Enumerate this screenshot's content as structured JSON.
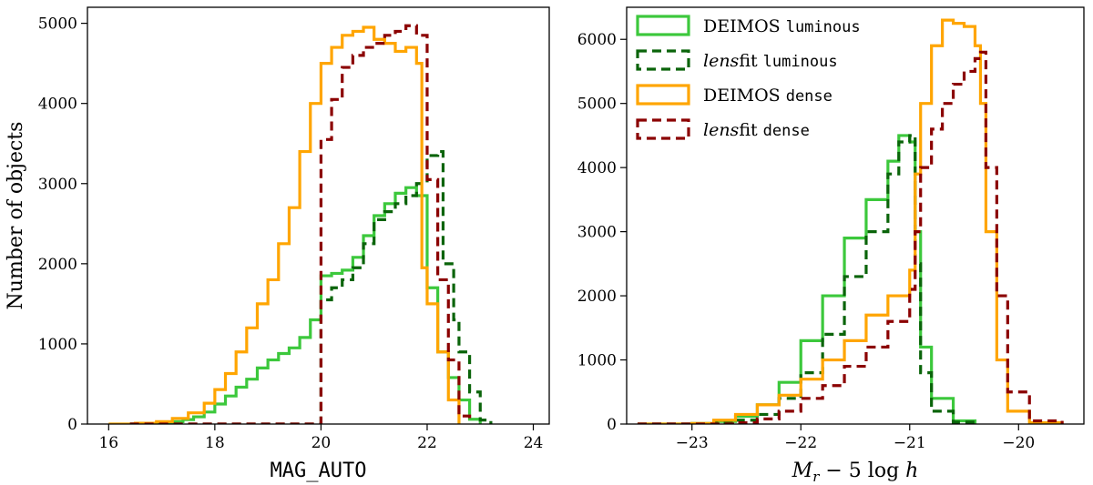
{
  "chart_data": [
    {
      "type": "histogram-step",
      "title": "",
      "xlabel": "MAG_AUTO",
      "xlabel_style": "monospace",
      "ylabel": "Number of objects",
      "xlim": [
        15.6,
        24.3
      ],
      "ylim": [
        0,
        5200
      ],
      "xticks": [
        16,
        18,
        20,
        22,
        24
      ],
      "yticks": [
        0,
        1000,
        2000,
        3000,
        4000,
        5000
      ],
      "grid": false,
      "legend": null,
      "series": [
        {
          "key": "deimos_luminous",
          "color": "#3cc83c",
          "dash": "solid",
          "points": [
            [
              16.4,
              0
            ],
            [
              16.8,
              5
            ],
            [
              17.0,
              15
            ],
            [
              17.2,
              30
            ],
            [
              17.4,
              55
            ],
            [
              17.6,
              90
            ],
            [
              17.8,
              150
            ],
            [
              18.0,
              250
            ],
            [
              18.2,
              350
            ],
            [
              18.4,
              460
            ],
            [
              18.6,
              560
            ],
            [
              18.8,
              700
            ],
            [
              19.0,
              800
            ],
            [
              19.2,
              880
            ],
            [
              19.4,
              950
            ],
            [
              19.6,
              1080
            ],
            [
              19.8,
              1300
            ],
            [
              20.0,
              1850
            ],
            [
              20.2,
              1880
            ],
            [
              20.4,
              1920
            ],
            [
              20.6,
              2080
            ],
            [
              20.8,
              2350
            ],
            [
              21.0,
              2600
            ],
            [
              21.2,
              2750
            ],
            [
              21.4,
              2880
            ],
            [
              21.6,
              2950
            ],
            [
              21.8,
              2850
            ],
            [
              22.0,
              1700
            ],
            [
              22.2,
              900
            ],
            [
              22.4,
              580
            ],
            [
              22.6,
              300
            ],
            [
              22.8,
              60
            ],
            [
              23.0,
              0
            ]
          ]
        },
        {
          "key": "lensfit_luminous",
          "color": "#0a640a",
          "dash": "dashed",
          "points": [
            [
              16.4,
              0
            ],
            [
              19.95,
              0
            ],
            [
              20.0,
              1550
            ],
            [
              20.2,
              1700
            ],
            [
              20.4,
              1800
            ],
            [
              20.6,
              1950
            ],
            [
              20.8,
              2250
            ],
            [
              21.0,
              2550
            ],
            [
              21.2,
              2650
            ],
            [
              21.4,
              2750
            ],
            [
              21.6,
              2850
            ],
            [
              21.8,
              3000
            ],
            [
              22.0,
              3350
            ],
            [
              22.2,
              3400
            ],
            [
              22.3,
              2000
            ],
            [
              22.5,
              1300
            ],
            [
              22.6,
              900
            ],
            [
              22.8,
              400
            ],
            [
              23.0,
              50
            ],
            [
              23.2,
              0
            ]
          ]
        },
        {
          "key": "deimos_dense",
          "color": "#ffa500",
          "dash": "solid",
          "points": [
            [
              16.0,
              0
            ],
            [
              16.5,
              10
            ],
            [
              16.9,
              30
            ],
            [
              17.2,
              70
            ],
            [
              17.5,
              140
            ],
            [
              17.8,
              260
            ],
            [
              18.0,
              430
            ],
            [
              18.2,
              630
            ],
            [
              18.4,
              900
            ],
            [
              18.6,
              1200
            ],
            [
              18.8,
              1500
            ],
            [
              19.0,
              1800
            ],
            [
              19.2,
              2250
            ],
            [
              19.4,
              2700
            ],
            [
              19.6,
              3400
            ],
            [
              19.8,
              4000
            ],
            [
              20.0,
              4500
            ],
            [
              20.2,
              4700
            ],
            [
              20.4,
              4850
            ],
            [
              20.6,
              4900
            ],
            [
              20.8,
              4950
            ],
            [
              21.0,
              4800
            ],
            [
              21.2,
              4750
            ],
            [
              21.4,
              4650
            ],
            [
              21.6,
              4700
            ],
            [
              21.8,
              4500
            ],
            [
              21.9,
              1950
            ],
            [
              22.0,
              1500
            ],
            [
              22.2,
              900
            ],
            [
              22.4,
              300
            ],
            [
              22.6,
              0
            ]
          ]
        },
        {
          "key": "lensfit_dense",
          "color": "#8b0000",
          "dash": "dashed",
          "points": [
            [
              16.4,
              0
            ],
            [
              19.95,
              0
            ],
            [
              20.0,
              3550
            ],
            [
              20.2,
              4050
            ],
            [
              20.4,
              4450
            ],
            [
              20.6,
              4600
            ],
            [
              20.8,
              4700
            ],
            [
              21.0,
              4750
            ],
            [
              21.2,
              4850
            ],
            [
              21.4,
              4900
            ],
            [
              21.6,
              4970
            ],
            [
              21.8,
              4850
            ],
            [
              22.0,
              3050
            ],
            [
              22.2,
              1800
            ],
            [
              22.4,
              800
            ],
            [
              22.6,
              100
            ],
            [
              22.8,
              0
            ]
          ]
        }
      ]
    },
    {
      "type": "histogram-step",
      "title": "",
      "xlabel": "M_r − 5 log h",
      "ylabel": "",
      "xlim": [
        -23.6,
        -19.4
      ],
      "ylim": [
        0,
        6500
      ],
      "xticks": [
        -23,
        -22,
        -21,
        -20
      ],
      "xtick_labels": [
        "−23",
        "−22",
        "−21",
        "−20"
      ],
      "yticks": [
        0,
        1000,
        2000,
        3000,
        4000,
        5000,
        6000
      ],
      "grid": false,
      "legend": "top-left",
      "series": [
        {
          "key": "deimos_luminous",
          "color": "#3cc83c",
          "dash": "solid",
          "legend_main": "DEIMOS ",
          "legend_mono": "luminous",
          "legend_main_italic": false,
          "points": [
            [
              -23.5,
              0
            ],
            [
              -23.0,
              10
            ],
            [
              -22.8,
              40
            ],
            [
              -22.6,
              120
            ],
            [
              -22.4,
              300
            ],
            [
              -22.2,
              650
            ],
            [
              -22.0,
              1300
            ],
            [
              -21.8,
              2000
            ],
            [
              -21.6,
              2900
            ],
            [
              -21.4,
              3500
            ],
            [
              -21.2,
              4100
            ],
            [
              -21.1,
              4500
            ],
            [
              -21.0,
              4400
            ],
            [
              -20.95,
              3000
            ],
            [
              -20.9,
              1200
            ],
            [
              -20.8,
              400
            ],
            [
              -20.6,
              50
            ],
            [
              -20.4,
              0
            ]
          ]
        },
        {
          "key": "lensfit_luminous",
          "color": "#0a640a",
          "dash": "dashed",
          "legend_main": "lens",
          "legend_suffix": "fit ",
          "legend_mono": "luminous",
          "legend_main_italic": true,
          "points": [
            [
              -23.5,
              0
            ],
            [
              -23.0,
              5
            ],
            [
              -22.8,
              20
            ],
            [
              -22.6,
              60
            ],
            [
              -22.4,
              150
            ],
            [
              -22.2,
              400
            ],
            [
              -22.0,
              800
            ],
            [
              -21.8,
              1400
            ],
            [
              -21.6,
              2300
            ],
            [
              -21.4,
              3000
            ],
            [
              -21.2,
              3900
            ],
            [
              -21.1,
              4400
            ],
            [
              -21.0,
              4500
            ],
            [
              -20.95,
              2500
            ],
            [
              -20.9,
              800
            ],
            [
              -20.8,
              200
            ],
            [
              -20.6,
              30
            ],
            [
              -20.4,
              0
            ]
          ]
        },
        {
          "key": "deimos_dense",
          "color": "#ffa500",
          "dash": "solid",
          "legend_main": "DEIMOS ",
          "legend_mono": "dense",
          "legend_main_italic": false,
          "points": [
            [
              -23.5,
              0
            ],
            [
              -23.0,
              10
            ],
            [
              -22.8,
              60
            ],
            [
              -22.6,
              150
            ],
            [
              -22.4,
              300
            ],
            [
              -22.2,
              450
            ],
            [
              -22.0,
              700
            ],
            [
              -21.8,
              1000
            ],
            [
              -21.6,
              1300
            ],
            [
              -21.4,
              1700
            ],
            [
              -21.2,
              2000
            ],
            [
              -21.0,
              2400
            ],
            [
              -20.95,
              3900
            ],
            [
              -20.9,
              5000
            ],
            [
              -20.8,
              5900
            ],
            [
              -20.7,
              6300
            ],
            [
              -20.6,
              6250
            ],
            [
              -20.5,
              6200
            ],
            [
              -20.4,
              5900
            ],
            [
              -20.35,
              5000
            ],
            [
              -20.3,
              3000
            ],
            [
              -20.2,
              1000
            ],
            [
              -20.1,
              200
            ],
            [
              -19.9,
              20
            ],
            [
              -19.6,
              0
            ]
          ]
        },
        {
          "key": "lensfit_dense",
          "color": "#8b0000",
          "dash": "dashed",
          "legend_main": "lens",
          "legend_suffix": "fit ",
          "legend_mono": "dense",
          "legend_main_italic": true,
          "points": [
            [
              -23.5,
              0
            ],
            [
              -22.6,
              20
            ],
            [
              -22.4,
              80
            ],
            [
              -22.2,
              200
            ],
            [
              -22.0,
              400
            ],
            [
              -21.8,
              600
            ],
            [
              -21.6,
              900
            ],
            [
              -21.4,
              1200
            ],
            [
              -21.2,
              1600
            ],
            [
              -21.0,
              2100
            ],
            [
              -20.95,
              3000
            ],
            [
              -20.9,
              4000
            ],
            [
              -20.8,
              4600
            ],
            [
              -20.7,
              5000
            ],
            [
              -20.6,
              5300
            ],
            [
              -20.5,
              5500
            ],
            [
              -20.4,
              5700
            ],
            [
              -20.35,
              5800
            ],
            [
              -20.3,
              4000
            ],
            [
              -20.2,
              2000
            ],
            [
              -20.1,
              500
            ],
            [
              -19.9,
              50
            ],
            [
              -19.6,
              0
            ]
          ]
        }
      ]
    }
  ]
}
